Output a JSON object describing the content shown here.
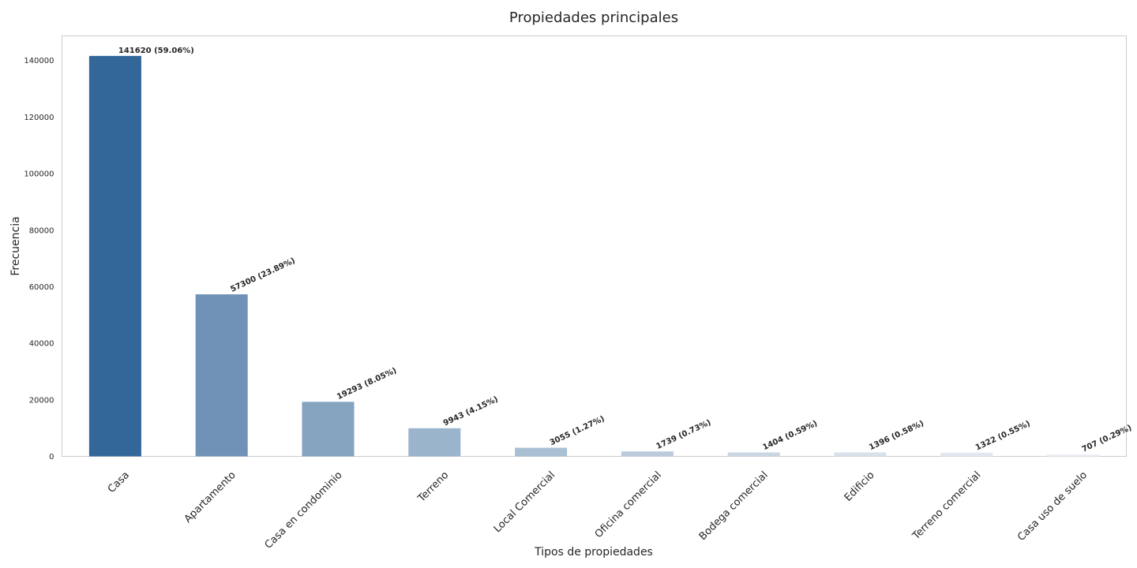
{
  "chart_data": {
    "type": "bar",
    "title": "Propiedades principales",
    "xlabel": "Tipos de propiedades",
    "ylabel": "Frecuencia",
    "categories": [
      "Casa",
      "Apartamento",
      "Casa en condominio",
      "Terreno",
      "Local Comercial",
      "Oficina comercial",
      "Bodega comercial",
      "Edificio",
      "Terreno comercial",
      "Casa uso de suelo"
    ],
    "values": [
      141620,
      57300,
      19293,
      9943,
      3055,
      1739,
      1404,
      1396,
      1322,
      707
    ],
    "value_labels": [
      "141620 (59.06%)",
      "57300 (23.89%)",
      "19293 (8.05%)",
      "9943 (4.15%)",
      "3055 (1.27%)",
      "1739 (0.73%)",
      "1404 (0.59%)",
      "1396 (0.58%)",
      "1322 (0.55%)",
      "707 (0.29%)"
    ],
    "yticks": [
      0,
      20000,
      40000,
      60000,
      80000,
      100000,
      120000,
      140000
    ],
    "ytick_labels": [
      "0",
      "20000",
      "40000",
      "60000",
      "80000",
      "100000",
      "120000",
      "140000"
    ],
    "ylim": [
      0,
      148701
    ],
    "grid": false,
    "bar_colors": [
      "#336699",
      "#7092b7",
      "#84a4c0",
      "#9ab4cc",
      "#a9bfd3",
      "#bccbdc",
      "#cbd6e4",
      "#d9e2ec",
      "#e2e8f0",
      "#ebeff5"
    ]
  }
}
